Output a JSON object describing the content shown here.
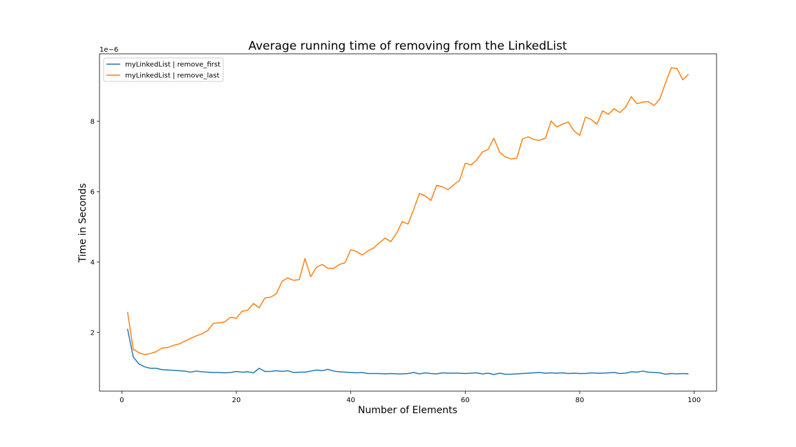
{
  "chart_data": {
    "type": "line",
    "title": "Average running time of removing from the LinkedList",
    "xlabel": "Number of Elements",
    "ylabel": "Time in Seconds",
    "y_offset_text": "1e−6",
    "xlim": [
      -3.9,
      103.9
    ],
    "ylim": [
      0.33,
      9.92
    ],
    "xticks": [
      0,
      20,
      40,
      60,
      80,
      100
    ],
    "xtick_labels": [
      "0",
      "20",
      "40",
      "60",
      "80",
      "100"
    ],
    "yticks": [
      2,
      4,
      6,
      8
    ],
    "ytick_labels": [
      "2",
      "4",
      "6",
      "8"
    ],
    "grid": false,
    "legend_position": "top-left",
    "series": [
      {
        "name": "myLinkedList | remove_first",
        "color": "#1f77b4",
        "x": [
          1,
          2,
          3,
          4,
          5,
          6,
          7,
          8,
          9,
          10,
          11,
          12,
          13,
          14,
          15,
          16,
          17,
          18,
          19,
          20,
          21,
          22,
          23,
          24,
          25,
          26,
          27,
          28,
          29,
          30,
          31,
          32,
          33,
          34,
          35,
          36,
          37,
          38,
          39,
          40,
          41,
          42,
          43,
          44,
          45,
          46,
          47,
          48,
          49,
          50,
          51,
          52,
          53,
          54,
          55,
          56,
          57,
          58,
          59,
          60,
          61,
          62,
          63,
          64,
          65,
          66,
          67,
          68,
          69,
          70,
          71,
          72,
          73,
          74,
          75,
          76,
          77,
          78,
          79,
          80,
          81,
          82,
          83,
          84,
          85,
          86,
          87,
          88,
          89,
          90,
          91,
          92,
          93,
          94,
          95,
          96,
          97,
          98,
          99
        ],
        "values": [
          2.1,
          1.3,
          1.1,
          1.02,
          0.98,
          0.98,
          0.94,
          0.93,
          0.92,
          0.91,
          0.9,
          0.87,
          0.9,
          0.88,
          0.87,
          0.86,
          0.86,
          0.85,
          0.86,
          0.89,
          0.87,
          0.88,
          0.85,
          0.98,
          0.89,
          0.89,
          0.91,
          0.89,
          0.91,
          0.86,
          0.87,
          0.87,
          0.9,
          0.93,
          0.91,
          0.95,
          0.9,
          0.88,
          0.87,
          0.86,
          0.85,
          0.86,
          0.83,
          0.83,
          0.83,
          0.82,
          0.83,
          0.82,
          0.82,
          0.83,
          0.86,
          0.82,
          0.85,
          0.83,
          0.82,
          0.85,
          0.84,
          0.84,
          0.84,
          0.83,
          0.84,
          0.85,
          0.82,
          0.84,
          0.8,
          0.84,
          0.81,
          0.81,
          0.82,
          0.83,
          0.84,
          0.85,
          0.86,
          0.84,
          0.85,
          0.84,
          0.85,
          0.83,
          0.84,
          0.83,
          0.83,
          0.85,
          0.84,
          0.84,
          0.85,
          0.86,
          0.83,
          0.84,
          0.88,
          0.87,
          0.9,
          0.87,
          0.86,
          0.85,
          0.81,
          0.83,
          0.82,
          0.83,
          0.82
        ]
      },
      {
        "name": "myLinkedList | remove_last",
        "color": "#ff7f0e",
        "x": [
          1,
          2,
          3,
          4,
          5,
          6,
          7,
          8,
          9,
          10,
          11,
          12,
          13,
          14,
          15,
          16,
          17,
          18,
          19,
          20,
          21,
          22,
          23,
          24,
          25,
          26,
          27,
          28,
          29,
          30,
          31,
          32,
          33,
          34,
          35,
          36,
          37,
          38,
          39,
          40,
          41,
          42,
          43,
          44,
          45,
          46,
          47,
          48,
          49,
          50,
          51,
          52,
          53,
          54,
          55,
          56,
          57,
          58,
          59,
          60,
          61,
          62,
          63,
          64,
          65,
          66,
          67,
          68,
          69,
          70,
          71,
          72,
          73,
          74,
          75,
          76,
          77,
          78,
          79,
          80,
          81,
          82,
          83,
          84,
          85,
          86,
          87,
          88,
          89,
          90,
          91,
          92,
          93,
          94,
          95,
          96,
          97,
          98,
          99
        ],
        "values": [
          2.58,
          1.52,
          1.42,
          1.37,
          1.4,
          1.45,
          1.55,
          1.57,
          1.63,
          1.67,
          1.75,
          1.83,
          1.9,
          1.96,
          2.05,
          2.26,
          2.27,
          2.3,
          2.43,
          2.4,
          2.6,
          2.63,
          2.82,
          2.7,
          2.98,
          3.0,
          3.1,
          3.45,
          3.55,
          3.48,
          3.5,
          4.1,
          3.58,
          3.85,
          3.93,
          3.82,
          3.82,
          3.93,
          3.98,
          4.35,
          4.3,
          4.2,
          4.32,
          4.4,
          4.55,
          4.68,
          4.58,
          4.82,
          5.15,
          5.08,
          5.5,
          5.95,
          5.88,
          5.75,
          6.18,
          6.14,
          6.06,
          6.2,
          6.32,
          6.81,
          6.76,
          6.9,
          7.13,
          7.2,
          7.52,
          7.12,
          6.99,
          6.93,
          6.95,
          7.5,
          7.56,
          7.48,
          7.46,
          7.52,
          8.01,
          7.84,
          7.92,
          7.98,
          7.73,
          7.6,
          8.12,
          8.05,
          7.92,
          8.3,
          8.2,
          8.36,
          8.25,
          8.4,
          8.7,
          8.5,
          8.55,
          8.56,
          8.45,
          8.64,
          9.1,
          9.52,
          9.5,
          9.18,
          9.34
        ]
      }
    ]
  }
}
